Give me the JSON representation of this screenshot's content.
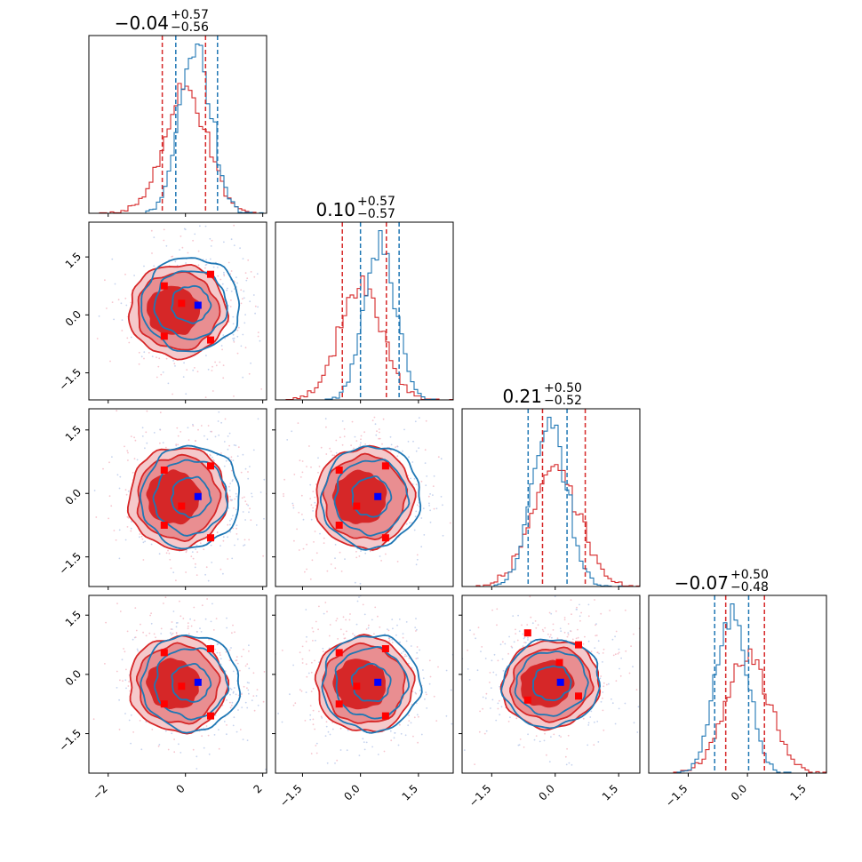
{
  "chart_data": {
    "type": "corner",
    "dimensions": 4,
    "colors": {
      "primary": "#d62728",
      "secondary": "#1f77b4",
      "marker_blue": "#0000ff",
      "marker_red": "#ff0000"
    },
    "titles": [
      {
        "value": "−0.04",
        "plus": "+0.57",
        "minus": "−0.56"
      },
      {
        "value": "0.10",
        "plus": "+0.57",
        "minus": "−0.57"
      },
      {
        "value": "0.21",
        "plus": "+0.50",
        "minus": "−0.52"
      },
      {
        "value": "−0.07",
        "plus": "+0.50",
        "minus": "−0.48"
      }
    ],
    "ranges": [
      [
        -2.5,
        2.1
      ],
      [
        -2.2,
        2.4
      ],
      [
        -2.2,
        2.0
      ],
      [
        -2.5,
        2.0
      ]
    ],
    "x_ticks": [
      {
        "values": [
          -2,
          0,
          2
        ],
        "labels": [
          "−2",
          "0",
          "2"
        ]
      },
      {
        "values": [
          -1.5,
          0,
          1.5
        ],
        "labels": [
          "−1.5",
          "0.0",
          "1.5"
        ]
      },
      {
        "values": [
          -1.5,
          0,
          1.5
        ],
        "labels": [
          "−1.5",
          "0.0",
          "1.5"
        ]
      },
      {
        "values": [
          -1.5,
          0,
          1.5
        ],
        "labels": [
          "−1.5",
          "0.0",
          "1.5"
        ]
      }
    ],
    "y_ticks": [
      {
        "values": [
          -1.5,
          0,
          1.5
        ],
        "labels": [
          "−1.5",
          "0.0",
          "1.5"
        ]
      },
      {
        "values": [
          -1.5,
          0,
          1.5
        ],
        "labels": [
          "−1.5",
          "0.0",
          "1.5"
        ]
      },
      {
        "values": [
          -1.5,
          0,
          1.5
        ],
        "labels": [
          "−1.5",
          "0.0",
          "1.5"
        ]
      }
    ],
    "quantile_lines": {
      "red": [
        [
          -0.6,
          0.52
        ],
        [
          -0.47,
          0.67
        ],
        [
          -0.3,
          0.71
        ],
        [
          -0.55,
          0.43
        ]
      ],
      "blue": [
        [
          -0.25,
          0.83
        ],
        [
          0.0,
          1.0
        ],
        [
          -0.64,
          0.28
        ],
        [
          -0.83,
          0.03
        ]
      ]
    },
    "means": {
      "red": [
        0.0,
        0.0,
        0.0,
        0.0
      ],
      "blue": [
        0.25,
        0.5,
        -0.15,
        -0.4
      ]
    },
    "red_markers": [
      [
        -0.55,
        -0.55
      ],
      [
        -0.55,
        0.75
      ],
      [
        0.65,
        -0.65
      ],
      [
        0.65,
        1.05
      ],
      [
        -0.1,
        0.3
      ]
    ],
    "contour_sigmas": {
      "red": [
        [
          0.6,
          0.6,
          0.55,
          0.5
        ],
        [
          0.6,
          0.6,
          0.55,
          0.5
        ]
      ],
      "blue": [
        [
          0.55,
          0.55,
          0.5,
          0.45
        ]
      ]
    },
    "histogram_bins": 50
  }
}
